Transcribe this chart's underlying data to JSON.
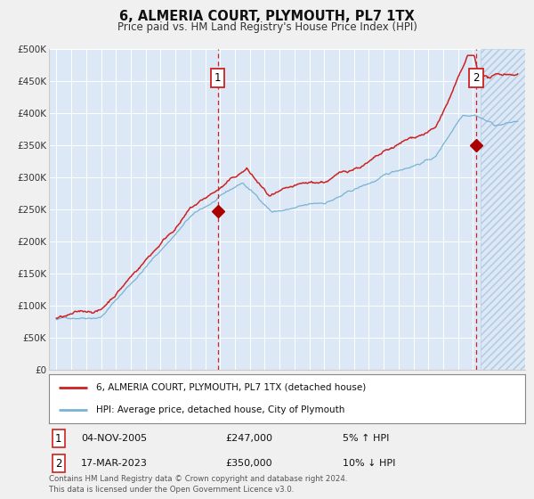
{
  "title": "6, ALMERIA COURT, PLYMOUTH, PL7 1TX",
  "subtitle": "Price paid vs. HM Land Registry's House Price Index (HPI)",
  "bg_color": "#f0f0f0",
  "plot_bg_color": "#dce8f5",
  "grid_color": "#ffffff",
  "sale1_date_num": 2005.84,
  "sale1_price": 247000,
  "sale1_label": "1",
  "sale1_pct": "5% ↑ HPI",
  "sale1_date_str": "04-NOV-2005",
  "sale2_date_num": 2023.21,
  "sale2_price": 350000,
  "sale2_label": "2",
  "sale2_pct": "10% ↓ HPI",
  "sale2_date_str": "17-MAR-2023",
  "legend_line1": "6, ALMERIA COURT, PLYMOUTH, PL7 1TX (detached house)",
  "legend_line2": "HPI: Average price, detached house, City of Plymouth",
  "footnote": "Contains HM Land Registry data © Crown copyright and database right 2024.\nThis data is licensed under the Open Government Licence v3.0.",
  "hpi_color": "#7ab3d4",
  "price_color": "#cc2222",
  "marker_color": "#aa0000",
  "vline_color": "#cc2222",
  "hatch_color": "#c8d8e8",
  "xlim_left": 1994.5,
  "xlim_right": 2026.5,
  "hatch_start": 2023.5,
  "ylim_bottom": 0,
  "ylim_top": 500000,
  "ytick_values": [
    0,
    50000,
    100000,
    150000,
    200000,
    250000,
    300000,
    350000,
    400000,
    450000,
    500000
  ],
  "ytick_labels": [
    "£0",
    "£50K",
    "£100K",
    "£150K",
    "£200K",
    "£250K",
    "£300K",
    "£350K",
    "£400K",
    "£450K",
    "£500K"
  ],
  "xtick_values": [
    1995,
    1996,
    1997,
    1998,
    1999,
    2000,
    2001,
    2002,
    2003,
    2004,
    2005,
    2006,
    2007,
    2008,
    2009,
    2010,
    2011,
    2012,
    2013,
    2014,
    2015,
    2016,
    2017,
    2018,
    2019,
    2020,
    2021,
    2022,
    2023,
    2024,
    2025,
    2026
  ]
}
